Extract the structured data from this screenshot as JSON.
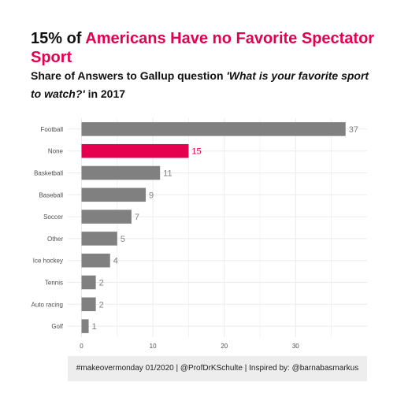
{
  "header": {
    "title_prefix": "15% of",
    "title_highlight": "Americans Have no Favorite Spectator Sport",
    "subtitle_prefix": "Share of Answers to Gallup question",
    "subtitle_question": "'What is your favorite sport to watch?'",
    "subtitle_suffix": "in 2017"
  },
  "caption": "#makeovermonday 01/2020 | @ProfDrKSchulte | Inspired by: @barnabasmarkus",
  "colors": {
    "highlight": "#e4004f",
    "bar": "#808080",
    "text": "#111111",
    "grid": "#ebebeb",
    "caption_bg": "#ededed"
  },
  "chart_data": {
    "type": "bar",
    "orientation": "horizontal",
    "categories": [
      "Football",
      "None",
      "Basketball",
      "Baseball",
      "Soccer",
      "Other",
      "Ice hockey",
      "Tennis",
      "Auto racing",
      "Golf"
    ],
    "values": [
      37,
      15,
      11,
      9,
      7,
      5,
      4,
      2,
      2,
      1
    ],
    "highlight_category": "None",
    "xlim": [
      0,
      38
    ],
    "xticks": [
      0,
      10,
      20,
      30
    ],
    "grid": true,
    "data_labels": true
  }
}
